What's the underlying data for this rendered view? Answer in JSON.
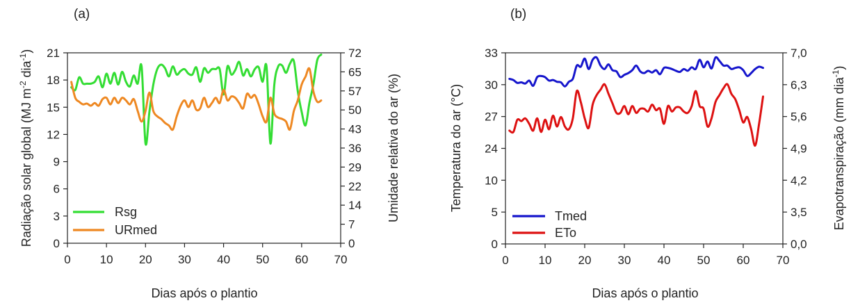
{
  "chart_data": [
    {
      "type": "line",
      "panel_label": "(a)",
      "xlabel": "Dias após o plantio",
      "ylabel": "Radiação solar global (MJ m-2 dia-1)",
      "ylabel_parts": {
        "a": "Radiação solar global (MJ m",
        "b": "-2",
        "c": " dia",
        "d": "-1",
        "e": ")"
      },
      "ylabel_right": "Umidade relativa do ar (%)",
      "xlim": [
        0,
        70
      ],
      "ylim": [
        0,
        21
      ],
      "ylim_right": [
        0,
        72
      ],
      "xticks": [
        "0",
        "10",
        "20",
        "30",
        "40",
        "50",
        "60",
        "70"
      ],
      "yticks": [
        "0",
        "3",
        "6",
        "9",
        "12",
        "15",
        "18",
        "21"
      ],
      "yticks_right": [
        "0",
        "7",
        "14",
        "22",
        "29",
        "36",
        "43",
        "50",
        "57",
        "65",
        "72"
      ],
      "legend": "bottom-left",
      "series": [
        {
          "name": "Rsg",
          "axis": "left",
          "color": "#33dd33",
          "x": [
            1,
            2,
            3,
            4,
            5,
            6,
            7,
            8,
            9,
            10,
            11,
            12,
            13,
            14,
            15,
            16,
            17,
            18,
            19,
            20,
            21,
            22,
            23,
            24,
            25,
            26,
            27,
            28,
            29,
            30,
            31,
            32,
            33,
            34,
            35,
            36,
            37,
            38,
            39,
            40,
            41,
            42,
            43,
            44,
            45,
            46,
            47,
            48,
            49,
            50,
            51,
            52,
            53,
            54,
            55,
            56,
            57,
            58,
            59,
            60,
            61,
            62,
            63,
            64,
            65
          ],
          "values": [
            17.2,
            16.9,
            18.3,
            17.6,
            17.6,
            17.6,
            17.8,
            18.4,
            17.2,
            18.7,
            17.6,
            18.8,
            17.5,
            18.9,
            17.8,
            17.3,
            18.5,
            17.6,
            19.5,
            11.0,
            14.5,
            17.5,
            19.2,
            19.7,
            19.3,
            18.4,
            19.5,
            18.6,
            19.0,
            19.2,
            18.7,
            18.6,
            19.4,
            17.8,
            19.3,
            18.8,
            19.2,
            19.2,
            19.2,
            16.4,
            19.5,
            18.6,
            19.1,
            20.0,
            18.5,
            19.2,
            18.4,
            19.2,
            19.4,
            17.8,
            19.5,
            11.0,
            17.5,
            19.5,
            19.6,
            18.8,
            19.8,
            20.1,
            16.8,
            14.5,
            13.0,
            15.5,
            17.5,
            20.2,
            20.8
          ]
        },
        {
          "name": "URmed",
          "axis": "right",
          "color": "#ee8822",
          "x": [
            1,
            2,
            3,
            4,
            5,
            6,
            7,
            8,
            9,
            10,
            11,
            12,
            13,
            14,
            15,
            16,
            17,
            18,
            19,
            20,
            21,
            22,
            23,
            24,
            25,
            26,
            27,
            28,
            29,
            30,
            31,
            32,
            33,
            34,
            35,
            36,
            37,
            38,
            39,
            40,
            41,
            42,
            43,
            44,
            45,
            46,
            47,
            48,
            49,
            50,
            51,
            52,
            53,
            54,
            55,
            56,
            57,
            58,
            59,
            60,
            61,
            62,
            63,
            64,
            65
          ],
          "values": [
            61.0,
            55.0,
            53.5,
            52.5,
            52.8,
            52.0,
            53.0,
            52.0,
            54.5,
            55.0,
            52.5,
            55.0,
            53.0,
            55.0,
            54.0,
            52.5,
            54.5,
            50.0,
            46.0,
            50.0,
            57.0,
            50.0,
            48.0,
            47.0,
            45.5,
            44.5,
            43.0,
            48.0,
            52.0,
            54.0,
            51.5,
            54.0,
            50.5,
            51.0,
            55.0,
            51.5,
            53.0,
            55.0,
            53.0,
            58.0,
            54.0,
            55.5,
            55.0,
            53.0,
            51.0,
            56.5,
            55.0,
            56.0,
            52.5,
            48.0,
            46.0,
            55.0,
            49.0,
            47.5,
            47.0,
            46.0,
            43.0,
            50.0,
            54.0,
            60.0,
            63.0,
            66.0,
            57.5,
            53.5,
            54.0
          ]
        }
      ]
    },
    {
      "type": "line",
      "panel_label": "(b)",
      "xlabel": "Dias após o plantio",
      "ylabel": "Temperatura do ar (°C)",
      "ylabel_right": "Evapotranspiração (mm dia-1)",
      "ylabel_right_parts": {
        "a": "Evapotranspiração (mm dia",
        "b": "-1",
        "c": ")"
      },
      "xlim": [
        0,
        70
      ],
      "ylim": [
        0,
        33
      ],
      "ylim_right": [
        0.0,
        7.0
      ],
      "xticks": [
        "0",
        "10",
        "20",
        "30",
        "40",
        "50",
        "60",
        "70"
      ],
      "yticks": [
        "0",
        "5",
        "10",
        "24",
        "27",
        "30",
        "33"
      ],
      "yticks_right": [
        "0,0",
        "3,5",
        "4,2",
        "4,9",
        "5,6",
        "6,3",
        "7,0"
      ],
      "legend": "bottom-left",
      "series": [
        {
          "name": "Tmed",
          "axis": "left",
          "color": "#1515cc",
          "x": [
            1,
            2,
            3,
            4,
            5,
            6,
            7,
            8,
            9,
            10,
            11,
            12,
            13,
            14,
            15,
            16,
            17,
            18,
            19,
            20,
            21,
            22,
            23,
            24,
            25,
            26,
            27,
            28,
            29,
            30,
            31,
            32,
            33,
            34,
            35,
            36,
            37,
            38,
            39,
            40,
            41,
            42,
            43,
            44,
            45,
            46,
            47,
            48,
            49,
            50,
            51,
            52,
            53,
            54,
            55,
            56,
            57,
            58,
            59,
            60,
            61,
            62,
            63,
            64,
            65
          ],
          "values": [
            28.5,
            28.3,
            27.8,
            27.9,
            27.7,
            28.2,
            27.3,
            28.8,
            29.0,
            28.8,
            28.2,
            28.3,
            28.0,
            27.9,
            27.2,
            28.0,
            28.5,
            30.8,
            30.6,
            32.0,
            30.2,
            31.8,
            32.2,
            30.8,
            30.2,
            31.0,
            30.0,
            29.8,
            28.8,
            29.2,
            29.5,
            30.0,
            30.8,
            29.8,
            29.5,
            29.9,
            29.6,
            30.0,
            29.3,
            30.4,
            30.4,
            30.2,
            29.9,
            29.7,
            30.2,
            29.9,
            30.5,
            30.2,
            31.8,
            30.5,
            31.5,
            30.3,
            32.2,
            31.6,
            30.8,
            30.8,
            30.2,
            30.4,
            30.5,
            30.0,
            29.0,
            29.5,
            30.2,
            30.6,
            30.4
          ]
        },
        {
          "name": "ETo",
          "axis": "right",
          "color": "#dd1111",
          "x": [
            1,
            2,
            3,
            4,
            5,
            6,
            7,
            8,
            9,
            10,
            11,
            12,
            13,
            14,
            15,
            16,
            17,
            18,
            19,
            20,
            21,
            22,
            23,
            24,
            25,
            26,
            27,
            28,
            29,
            30,
            31,
            32,
            33,
            34,
            35,
            36,
            37,
            38,
            39,
            40,
            41,
            42,
            43,
            44,
            45,
            46,
            47,
            48,
            49,
            50,
            51,
            52,
            53,
            54,
            55,
            56,
            57,
            58,
            59,
            60,
            61,
            62,
            63,
            64,
            65
          ],
          "values": [
            4.15,
            4.1,
            4.55,
            4.5,
            4.6,
            4.4,
            4.15,
            4.6,
            4.1,
            4.55,
            4.2,
            4.7,
            4.3,
            4.65,
            4.3,
            4.2,
            4.6,
            5.6,
            5.2,
            4.6,
            4.25,
            5.1,
            5.45,
            5.65,
            5.85,
            5.5,
            5.15,
            4.8,
            4.8,
            5.05,
            4.75,
            5.05,
            4.8,
            4.95,
            4.95,
            4.85,
            5.1,
            4.9,
            4.95,
            4.4,
            5.05,
            4.85,
            5.0,
            5.0,
            4.85,
            4.8,
            5.05,
            5.6,
            5.05,
            4.95,
            4.3,
            4.6,
            5.2,
            5.45,
            5.7,
            5.85,
            5.5,
            5.3,
            4.9,
            4.45,
            4.65,
            4.2,
            3.6,
            4.4,
            5.4
          ]
        }
      ]
    }
  ]
}
